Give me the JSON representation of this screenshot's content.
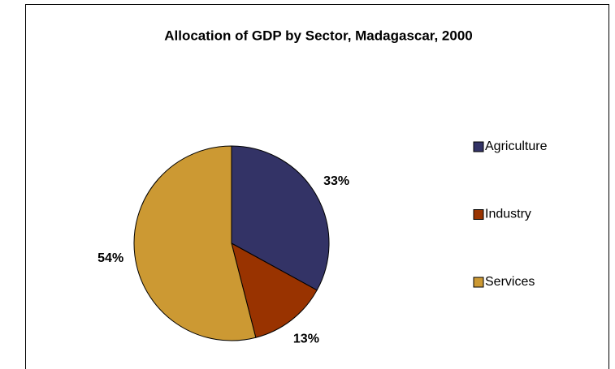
{
  "chart_data": {
    "type": "pie",
    "title": "Allocation of GDP by Sector, Madagascar, 2000",
    "categories": [
      "Agriculture",
      "Industry",
      "Services"
    ],
    "values": [
      33,
      13,
      54
    ],
    "value_labels": [
      "33%",
      "13%",
      "54%"
    ],
    "colors": [
      "#333366",
      "#993300",
      "#cc9933"
    ]
  }
}
